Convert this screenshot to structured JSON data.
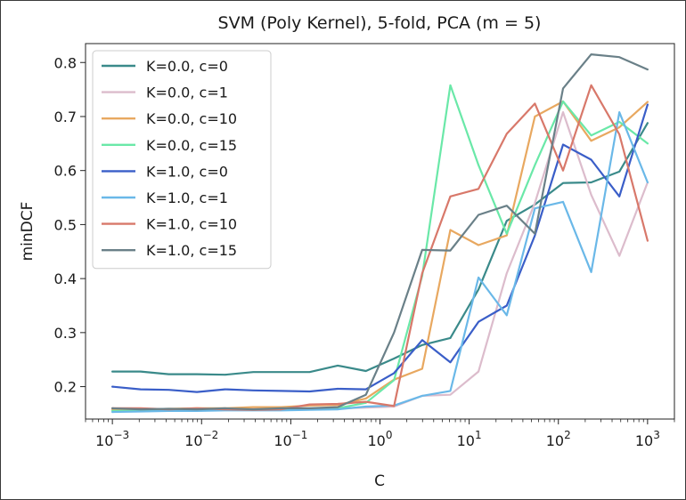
{
  "chart_data": {
    "type": "line",
    "title": "SVM (Poly Kernel), 5-fold, PCA (m = 5)",
    "xlabel": "C",
    "ylabel": "minDCF",
    "xscale": "log",
    "xlim": [
      0.0005,
      2000
    ],
    "ylim": [
      0.14,
      0.835
    ],
    "yticks": [
      0.2,
      0.3,
      0.4,
      0.5,
      0.6,
      0.7,
      0.8
    ],
    "ytick_labels": [
      "0.2",
      "0.3",
      "0.4",
      "0.5",
      "0.6",
      "0.7",
      "0.8"
    ],
    "xticks": [
      {
        "value": 0.001,
        "base": "10",
        "exp": "−3"
      },
      {
        "value": 0.01,
        "base": "10",
        "exp": "−2"
      },
      {
        "value": 0.1,
        "base": "10",
        "exp": "−1"
      },
      {
        "value": 1,
        "base": "10",
        "exp": "0"
      },
      {
        "value": 10,
        "base": "10",
        "exp": "1"
      },
      {
        "value": 100,
        "base": "10",
        "exp": "2"
      },
      {
        "value": 1000,
        "base": "10",
        "exp": "3"
      }
    ],
    "grid": false,
    "legend_position": "upper-left",
    "x": [
      0.001,
      0.002069,
      0.004281,
      0.008859,
      0.01833,
      0.03793,
      0.07848,
      0.1624,
      0.336,
      0.6952,
      1.438,
      2.976,
      6.158,
      12.74,
      26.37,
      54.56,
      112.9,
      233.6,
      483.3,
      1000
    ],
    "series": [
      {
        "name": "K=0.0, c=0",
        "color": "#3a8a8a",
        "values": [
          0.228,
          0.228,
          0.223,
          0.223,
          0.222,
          0.227,
          0.227,
          0.227,
          0.239,
          0.229,
          0.252,
          0.277,
          0.29,
          0.38,
          0.507,
          0.537,
          0.577,
          0.578,
          0.598,
          0.688
        ]
      },
      {
        "name": "K=0.0, c=1",
        "color": "#dcbccc",
        "values": [
          0.156,
          0.157,
          0.158,
          0.158,
          0.159,
          0.16,
          0.16,
          0.16,
          0.16,
          0.161,
          0.163,
          0.183,
          0.185,
          0.228,
          0.41,
          0.54,
          0.708,
          0.555,
          0.442,
          0.578
        ]
      },
      {
        "name": "K=0.0, c=10",
        "color": "#e8a860",
        "values": [
          0.158,
          0.158,
          0.159,
          0.16,
          0.16,
          0.162,
          0.162,
          0.165,
          0.166,
          0.178,
          0.213,
          0.233,
          0.49,
          0.462,
          0.48,
          0.7,
          0.728,
          0.655,
          0.68,
          0.727
        ]
      },
      {
        "name": "K=0.0, c=15",
        "color": "#6ae8a8",
        "values": [
          0.155,
          0.155,
          0.156,
          0.156,
          0.157,
          0.157,
          0.158,
          0.158,
          0.16,
          0.17,
          0.212,
          0.405,
          0.758,
          0.61,
          0.483,
          0.61,
          0.728,
          0.665,
          0.69,
          0.65
        ]
      },
      {
        "name": "K=1.0, c=0",
        "color": "#3a5ec8",
        "values": [
          0.2,
          0.195,
          0.194,
          0.19,
          0.195,
          0.193,
          0.192,
          0.191,
          0.196,
          0.195,
          0.225,
          0.286,
          0.245,
          0.32,
          0.35,
          0.48,
          0.648,
          0.62,
          0.552,
          0.722
        ]
      },
      {
        "name": "K=1.0, c=1",
        "color": "#6ab8e8",
        "values": [
          0.153,
          0.154,
          0.155,
          0.155,
          0.156,
          0.156,
          0.156,
          0.157,
          0.158,
          0.163,
          0.165,
          0.183,
          0.192,
          0.402,
          0.332,
          0.53,
          0.542,
          0.412,
          0.708,
          0.578
        ]
      },
      {
        "name": "K=1.0, c=10",
        "color": "#d8786a",
        "values": [
          0.16,
          0.16,
          0.158,
          0.16,
          0.158,
          0.157,
          0.158,
          0.167,
          0.168,
          0.172,
          0.164,
          0.41,
          0.552,
          0.566,
          0.668,
          0.724,
          0.6,
          0.758,
          0.667,
          0.47
        ]
      },
      {
        "name": "K=1.0, c=15",
        "color": "#6a8088",
        "values": [
          0.16,
          0.158,
          0.159,
          0.158,
          0.16,
          0.158,
          0.16,
          0.16,
          0.162,
          0.185,
          0.3,
          0.453,
          0.452,
          0.518,
          0.535,
          0.483,
          0.752,
          0.815,
          0.81,
          0.787
        ]
      }
    ]
  }
}
